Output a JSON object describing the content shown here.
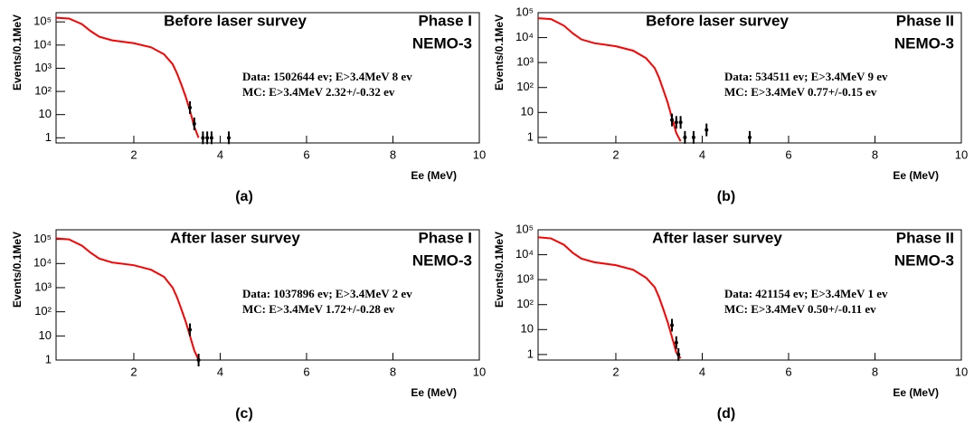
{
  "chart_data": [
    {
      "type": "line",
      "title": "Before laser survey",
      "phase": "Phase I",
      "experiment": "NEMO-3",
      "data_text": "Data: 1502644 ev; E>3.4MeV 8 ev",
      "mc_text": "MC: E>3.4MeV 2.32+/-0.32 ev",
      "caption": "(a)",
      "xlabel": "Ee (MeV)",
      "ylabel": "Events/0.1MeV",
      "log_y": true,
      "xlim": [
        0.2,
        10
      ],
      "ylim": [
        0.6,
        250000
      ],
      "xticks": [
        2,
        4,
        6,
        8,
        10
      ],
      "yticks": [
        1,
        10,
        {
          "value": 100,
          "label": "10²"
        },
        {
          "value": 1000,
          "label": "10³"
        },
        {
          "value": 10000,
          "label": "10⁴"
        },
        {
          "value": 100000,
          "label": "10⁵"
        }
      ],
      "series": [
        {
          "style": "line",
          "color": "#ff0000",
          "x": [
            0.2,
            0.5,
            0.8,
            1.0,
            1.2,
            1.5,
            2.0,
            2.4,
            2.7,
            2.9,
            3.0,
            3.1,
            3.2,
            3.3,
            3.4,
            3.5
          ],
          "values": [
            150000,
            140000,
            80000,
            40000,
            23000,
            16000,
            12000,
            8000,
            4000,
            1500,
            600,
            200,
            60,
            15,
            3,
            1
          ]
        },
        {
          "style": "points",
          "color": "#000000",
          "x": [
            3.3,
            3.4,
            3.6,
            3.7,
            3.8,
            4.2
          ],
          "values": [
            20,
            4,
            1,
            1,
            1,
            1
          ]
        }
      ]
    },
    {
      "type": "line",
      "title": "Before laser survey",
      "phase": "Phase II",
      "experiment": "NEMO-3",
      "data_text": "Data: 534511 ev; E>3.4MeV 9 ev",
      "mc_text": "MC: E>3.4MeV 0.77+/-0.15 ev",
      "caption": "(b)",
      "xlabel": "Ee (MeV)",
      "ylabel": "Events/0.1MeV",
      "log_y": true,
      "xlim": [
        0.2,
        10
      ],
      "ylim": [
        0.6,
        100000
      ],
      "xticks": [
        2,
        4,
        6,
        8,
        10
      ],
      "yticks": [
        1,
        10,
        {
          "value": 100,
          "label": "10²"
        },
        {
          "value": 1000,
          "label": "10³"
        },
        {
          "value": 10000,
          "label": "10⁴"
        },
        {
          "value": 100000,
          "label": "10⁵"
        }
      ],
      "series": [
        {
          "style": "line",
          "color": "#ff0000",
          "x": [
            0.2,
            0.5,
            0.8,
            1.0,
            1.2,
            1.5,
            2.0,
            2.4,
            2.7,
            2.9,
            3.0,
            3.1,
            3.2,
            3.3,
            3.4,
            3.5
          ],
          "values": [
            60000,
            55000,
            30000,
            15000,
            8500,
            6000,
            4500,
            3000,
            1500,
            600,
            250,
            80,
            25,
            6,
            1.5,
            0.7
          ]
        },
        {
          "style": "points",
          "color": "#000000",
          "x": [
            3.3,
            3.4,
            3.5,
            3.6,
            3.8,
            4.1,
            5.1
          ],
          "values": [
            5,
            4,
            4,
            1,
            1,
            2,
            1
          ]
        }
      ]
    },
    {
      "type": "line",
      "title": "After laser survey",
      "phase": "Phase I",
      "experiment": "NEMO-3",
      "data_text": "Data: 1037896 ev; E>3.4MeV 2 ev",
      "mc_text": "MC: E>3.4MeV 1.72+/-0.28 ev",
      "caption": "(c)",
      "xlabel": "Ee (MeV)",
      "ylabel": "Events/0.1MeV",
      "log_y": true,
      "xlim": [
        0.2,
        10
      ],
      "ylim": [
        1,
        250000
      ],
      "xticks": [
        2,
        4,
        6,
        8,
        10
      ],
      "yticks": [
        1,
        10,
        {
          "value": 100,
          "label": "10²"
        },
        {
          "value": 1000,
          "label": "10³"
        },
        {
          "value": 10000,
          "label": "10⁴"
        },
        {
          "value": 100000,
          "label": "10⁵"
        }
      ],
      "series": [
        {
          "style": "line",
          "color": "#ff0000",
          "x": [
            0.2,
            0.5,
            0.8,
            1.0,
            1.2,
            1.5,
            2.0,
            2.4,
            2.7,
            2.9,
            3.0,
            3.1,
            3.2,
            3.3,
            3.4,
            3.5
          ],
          "values": [
            110000,
            100000,
            55000,
            28000,
            16000,
            11000,
            8500,
            5500,
            2800,
            1000,
            400,
            130,
            40,
            10,
            2.5,
            1
          ]
        },
        {
          "style": "points",
          "color": "#000000",
          "x": [
            3.3,
            3.5
          ],
          "values": [
            18,
            1
          ]
        }
      ]
    },
    {
      "type": "line",
      "title": "After laser survey",
      "phase": "Phase II",
      "experiment": "NEMO-3",
      "data_text": "Data: 421154 ev; E>3.4MeV 1 ev",
      "mc_text": "MC: E>3.4MeV 0.50+/-0.11 ev",
      "caption": "(d)",
      "xlabel": "Ee (MeV)",
      "ylabel": "Events/0.1MeV",
      "log_y": true,
      "xlim": [
        0.2,
        10
      ],
      "ylim": [
        0.6,
        100000
      ],
      "xticks": [
        2,
        4,
        6,
        8,
        10
      ],
      "yticks": [
        1,
        10,
        {
          "value": 100,
          "label": "10²"
        },
        {
          "value": 1000,
          "label": "10³"
        },
        {
          "value": 10000,
          "label": "10⁴"
        },
        {
          "value": 100000,
          "label": "10⁵"
        }
      ],
      "series": [
        {
          "style": "line",
          "color": "#ff0000",
          "x": [
            0.2,
            0.5,
            0.8,
            1.0,
            1.2,
            1.5,
            2.0,
            2.4,
            2.7,
            2.9,
            3.0,
            3.1,
            3.2,
            3.3,
            3.4,
            3.5
          ],
          "values": [
            50000,
            45000,
            25000,
            12000,
            7000,
            5000,
            3800,
            2500,
            1200,
            500,
            200,
            65,
            20,
            5,
            1.2,
            0.7
          ]
        },
        {
          "style": "points",
          "color": "#000000",
          "x": [
            3.3,
            3.4,
            3.45
          ],
          "values": [
            15,
            3,
            1
          ]
        }
      ]
    }
  ]
}
